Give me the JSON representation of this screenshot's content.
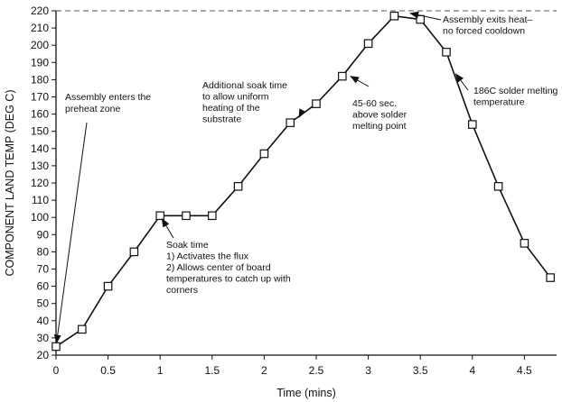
{
  "chart_data": {
    "type": "line",
    "title": "",
    "xlabel": "Time (mins)",
    "ylabel": "COMPONENT LAND TEMP (DEG C)",
    "xlim": [
      0,
      4.75
    ],
    "ylim": [
      20,
      220
    ],
    "x_ticks": [
      0,
      0.5,
      1,
      1.5,
      2,
      2.5,
      3,
      3.5,
      4,
      4.5
    ],
    "x_tick_labels": [
      "0",
      "0.5",
      "1",
      "1.5",
      "2",
      "2.5",
      "3",
      "3.5",
      "4",
      "4.5"
    ],
    "y_ticks": [
      20,
      30,
      40,
      50,
      60,
      70,
      80,
      90,
      100,
      110,
      120,
      130,
      140,
      150,
      160,
      170,
      180,
      190,
      200,
      210,
      220
    ],
    "y_tick_labels": [
      "20",
      "30",
      "40",
      "50",
      "60",
      "70",
      "80",
      "90",
      "100",
      "110",
      "120",
      "130",
      "140",
      "150",
      "160",
      "170",
      "180",
      "190",
      "200",
      "210",
      "220"
    ],
    "grid": false,
    "marker": "open-square",
    "series": [
      {
        "x": [
          0,
          0.25,
          0.5,
          0.75,
          1,
          1.25,
          1.5,
          1.75,
          2,
          2.25,
          2.5,
          2.75,
          3,
          3.25,
          3.5,
          3.75,
          4,
          4.25,
          4.5,
          4.75
        ],
        "y": [
          25,
          35,
          60,
          80,
          101,
          101,
          101,
          118,
          137,
          155,
          166,
          182,
          201,
          217,
          215,
          196,
          154,
          118,
          85,
          65
        ]
      }
    ],
    "reference_lines": [
      {
        "orientation": "horizontal",
        "y": 220,
        "style": "dashed"
      }
    ],
    "annotations": [
      {
        "lines": [
          "Assembly enters the",
          "preheat zone"
        ],
        "target": [
          0,
          25
        ]
      },
      {
        "lines": [
          "Soak time",
          "1) Activates the flux",
          "2) Allows center of board",
          "temperatures to catch up with",
          "corners"
        ],
        "target": [
          1,
          101
        ]
      },
      {
        "lines": [
          "Additional soak time",
          "to allow uniform",
          "heating of the",
          "substrate"
        ],
        "target": [
          2.35,
          160
        ]
      },
      {
        "lines": [
          "45-60 sec.",
          "above solder",
          "melting point"
        ],
        "target": [
          2.8,
          183
        ]
      },
      {
        "lines": [
          "Assembly exits heat–",
          "no forced cooldown"
        ],
        "target": [
          3.37,
          219
        ]
      },
      {
        "lines": [
          "186C solder melting",
          "temperature"
        ],
        "target": [
          3.82,
          185
        ]
      }
    ]
  }
}
